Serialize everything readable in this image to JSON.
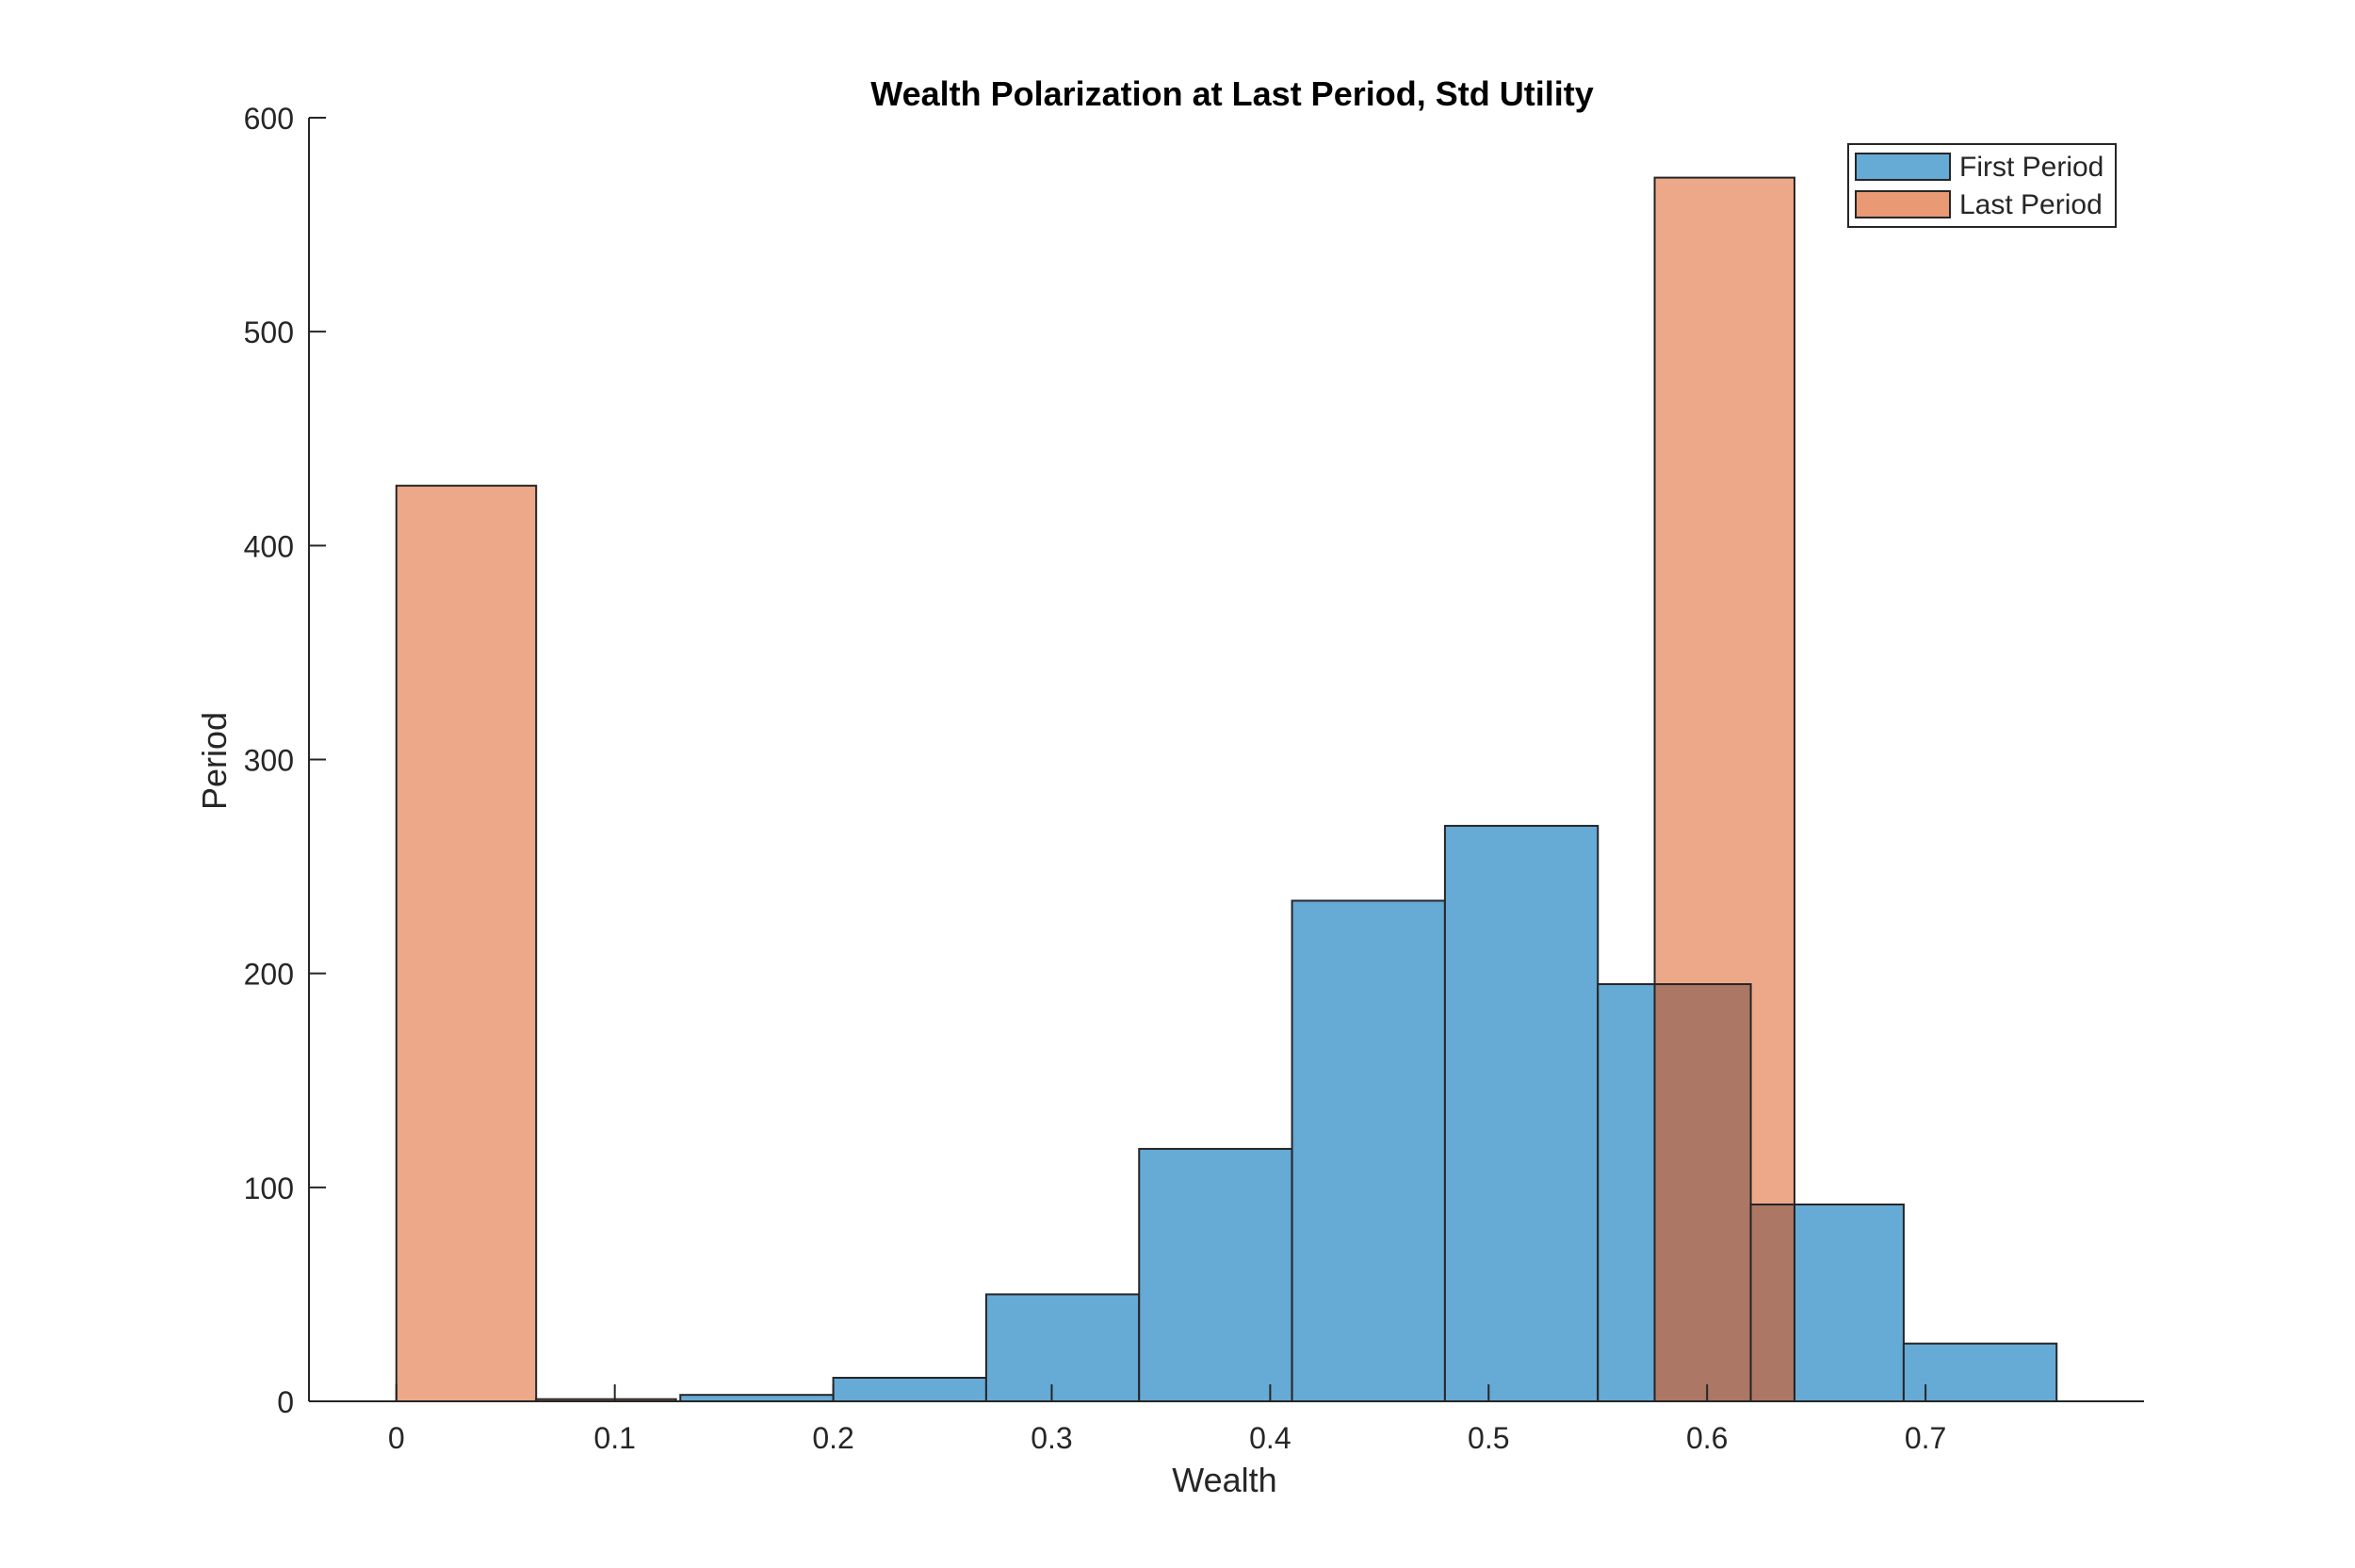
{
  "chart_data": {
    "type": "bar",
    "title": "Wealth Polarization at Last Period, Std Utility",
    "xlabel": "Wealth",
    "ylabel": "Period",
    "xlim": [
      -0.04,
      0.8
    ],
    "ylim": [
      0,
      600
    ],
    "xticks": [
      0,
      0.1,
      0.2,
      0.3,
      0.4,
      0.5,
      0.6,
      0.7
    ],
    "xtick_labels": [
      "0",
      "0.1",
      "0.2",
      "0.3",
      "0.4",
      "0.5",
      "0.6",
      "0.7"
    ],
    "yticks": [
      0,
      100,
      200,
      300,
      400,
      500,
      600
    ],
    "ytick_labels": [
      "0",
      "100",
      "200",
      "300",
      "400",
      "500",
      "600"
    ],
    "grid": false,
    "legend_position": "top-right",
    "series": [
      {
        "name": "First Period",
        "color": "#66aad6",
        "bins": [
          {
            "x0": 0.13,
            "x1": 0.2,
            "count": 3
          },
          {
            "x0": 0.2,
            "x1": 0.27,
            "count": 11
          },
          {
            "x0": 0.27,
            "x1": 0.34,
            "count": 50
          },
          {
            "x0": 0.34,
            "x1": 0.41,
            "count": 118
          },
          {
            "x0": 0.41,
            "x1": 0.48,
            "count": 234
          },
          {
            "x0": 0.48,
            "x1": 0.55,
            "count": 269
          },
          {
            "x0": 0.55,
            "x1": 0.62,
            "count": 195
          },
          {
            "x0": 0.62,
            "x1": 0.69,
            "count": 92
          },
          {
            "x0": 0.69,
            "x1": 0.76,
            "count": 27
          }
        ]
      },
      {
        "name": "Last Period",
        "color": "#e99974",
        "bins": [
          {
            "x0": 0.0,
            "x1": 0.064,
            "count": 428
          },
          {
            "x0": 0.064,
            "x1": 0.128,
            "count": 1
          },
          {
            "x0": 0.576,
            "x1": 0.64,
            "count": 572
          }
        ]
      }
    ]
  }
}
